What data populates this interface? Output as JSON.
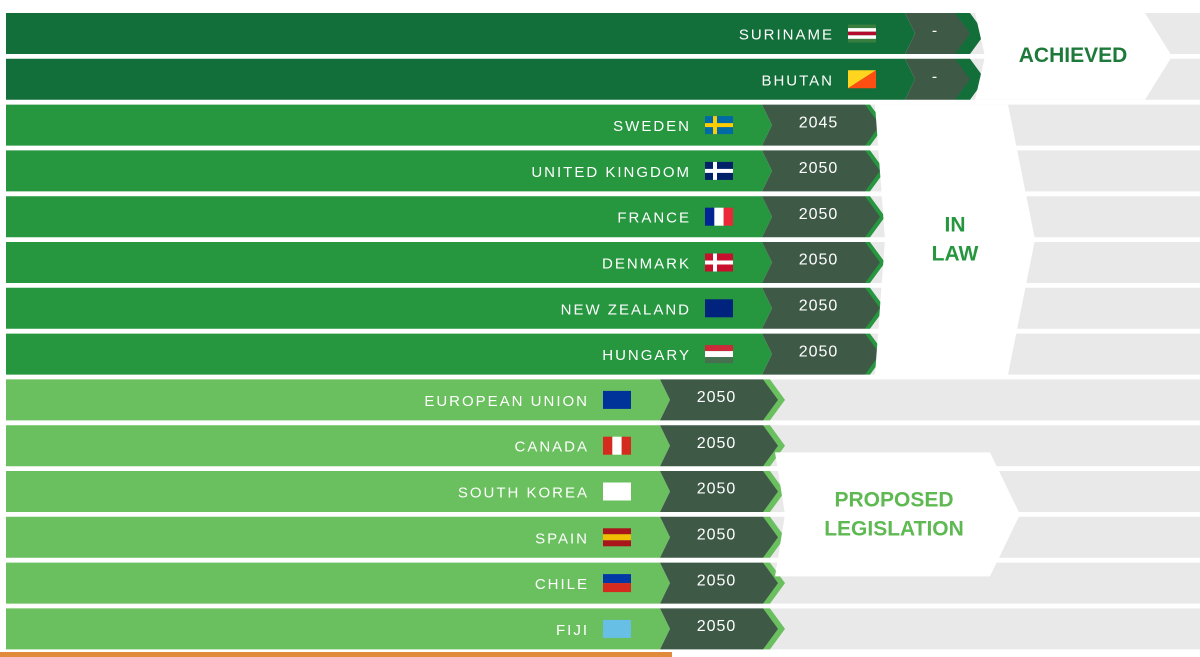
{
  "groups": [
    {
      "label": "ACHIEVED",
      "rows": [
        {
          "country": "SURINAME",
          "year": "-"
        },
        {
          "country": "BHUTAN",
          "year": "-"
        }
      ]
    },
    {
      "label": "IN LAW",
      "rows": [
        {
          "country": "SWEDEN",
          "year": "2045"
        },
        {
          "country": "UNITED KINGDOM",
          "year": "2050"
        },
        {
          "country": "FRANCE",
          "year": "2050"
        },
        {
          "country": "DENMARK",
          "year": "2050"
        },
        {
          "country": "NEW ZEALAND",
          "year": "2050"
        },
        {
          "country": "HUNGARY",
          "year": "2050"
        }
      ]
    },
    {
      "label": "PROPOSED LEGISLATION",
      "rows": [
        {
          "country": "EUROPEAN UNION",
          "year": "2050"
        },
        {
          "country": "CANADA",
          "year": "2050"
        },
        {
          "country": "SOUTH KOREA",
          "year": "2050"
        },
        {
          "country": "SPAIN",
          "year": "2050"
        },
        {
          "country": "CHILE",
          "year": "2050"
        },
        {
          "country": "FIJI",
          "year": "2050"
        }
      ]
    }
  ]
}
